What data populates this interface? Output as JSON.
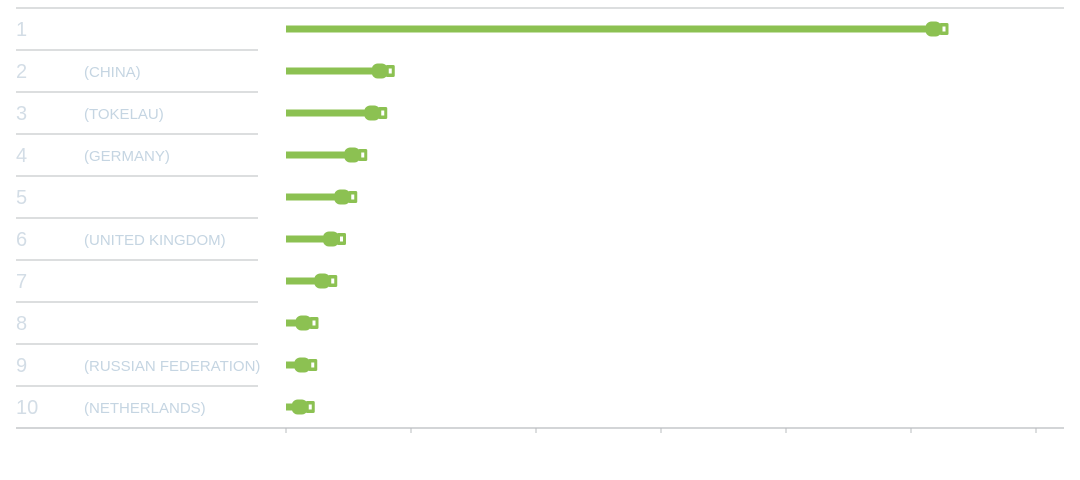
{
  "chart_data": {
    "type": "bar",
    "categories": [
      "1",
      "2",
      "3",
      "4",
      "5",
      "6",
      "7",
      "8",
      "9",
      "10"
    ],
    "labels": [
      "",
      "(CHINA)",
      "(TOKELAU)",
      "(GERMANY)",
      "",
      "(UNITED KINGDOM)",
      "",
      "",
      "(RUSSIAN FEDERATION)",
      "(NETHERLANDS)"
    ],
    "values": [
      53,
      8.7,
      8.1,
      6.5,
      5.7,
      4.8,
      4.1,
      2.6,
      2.5,
      2.3
    ],
    "xlim": [
      0,
      60
    ],
    "xticks": [
      0,
      10,
      20,
      30,
      40,
      50,
      60
    ],
    "title": "",
    "xlabel": "",
    "ylabel": "",
    "grid": false,
    "legend": "none"
  },
  "colors": {
    "bar": "#8cc152",
    "rank_text": "#d3dde6",
    "label_text": "#c5d5e2",
    "rules": "#b9bcbf"
  }
}
